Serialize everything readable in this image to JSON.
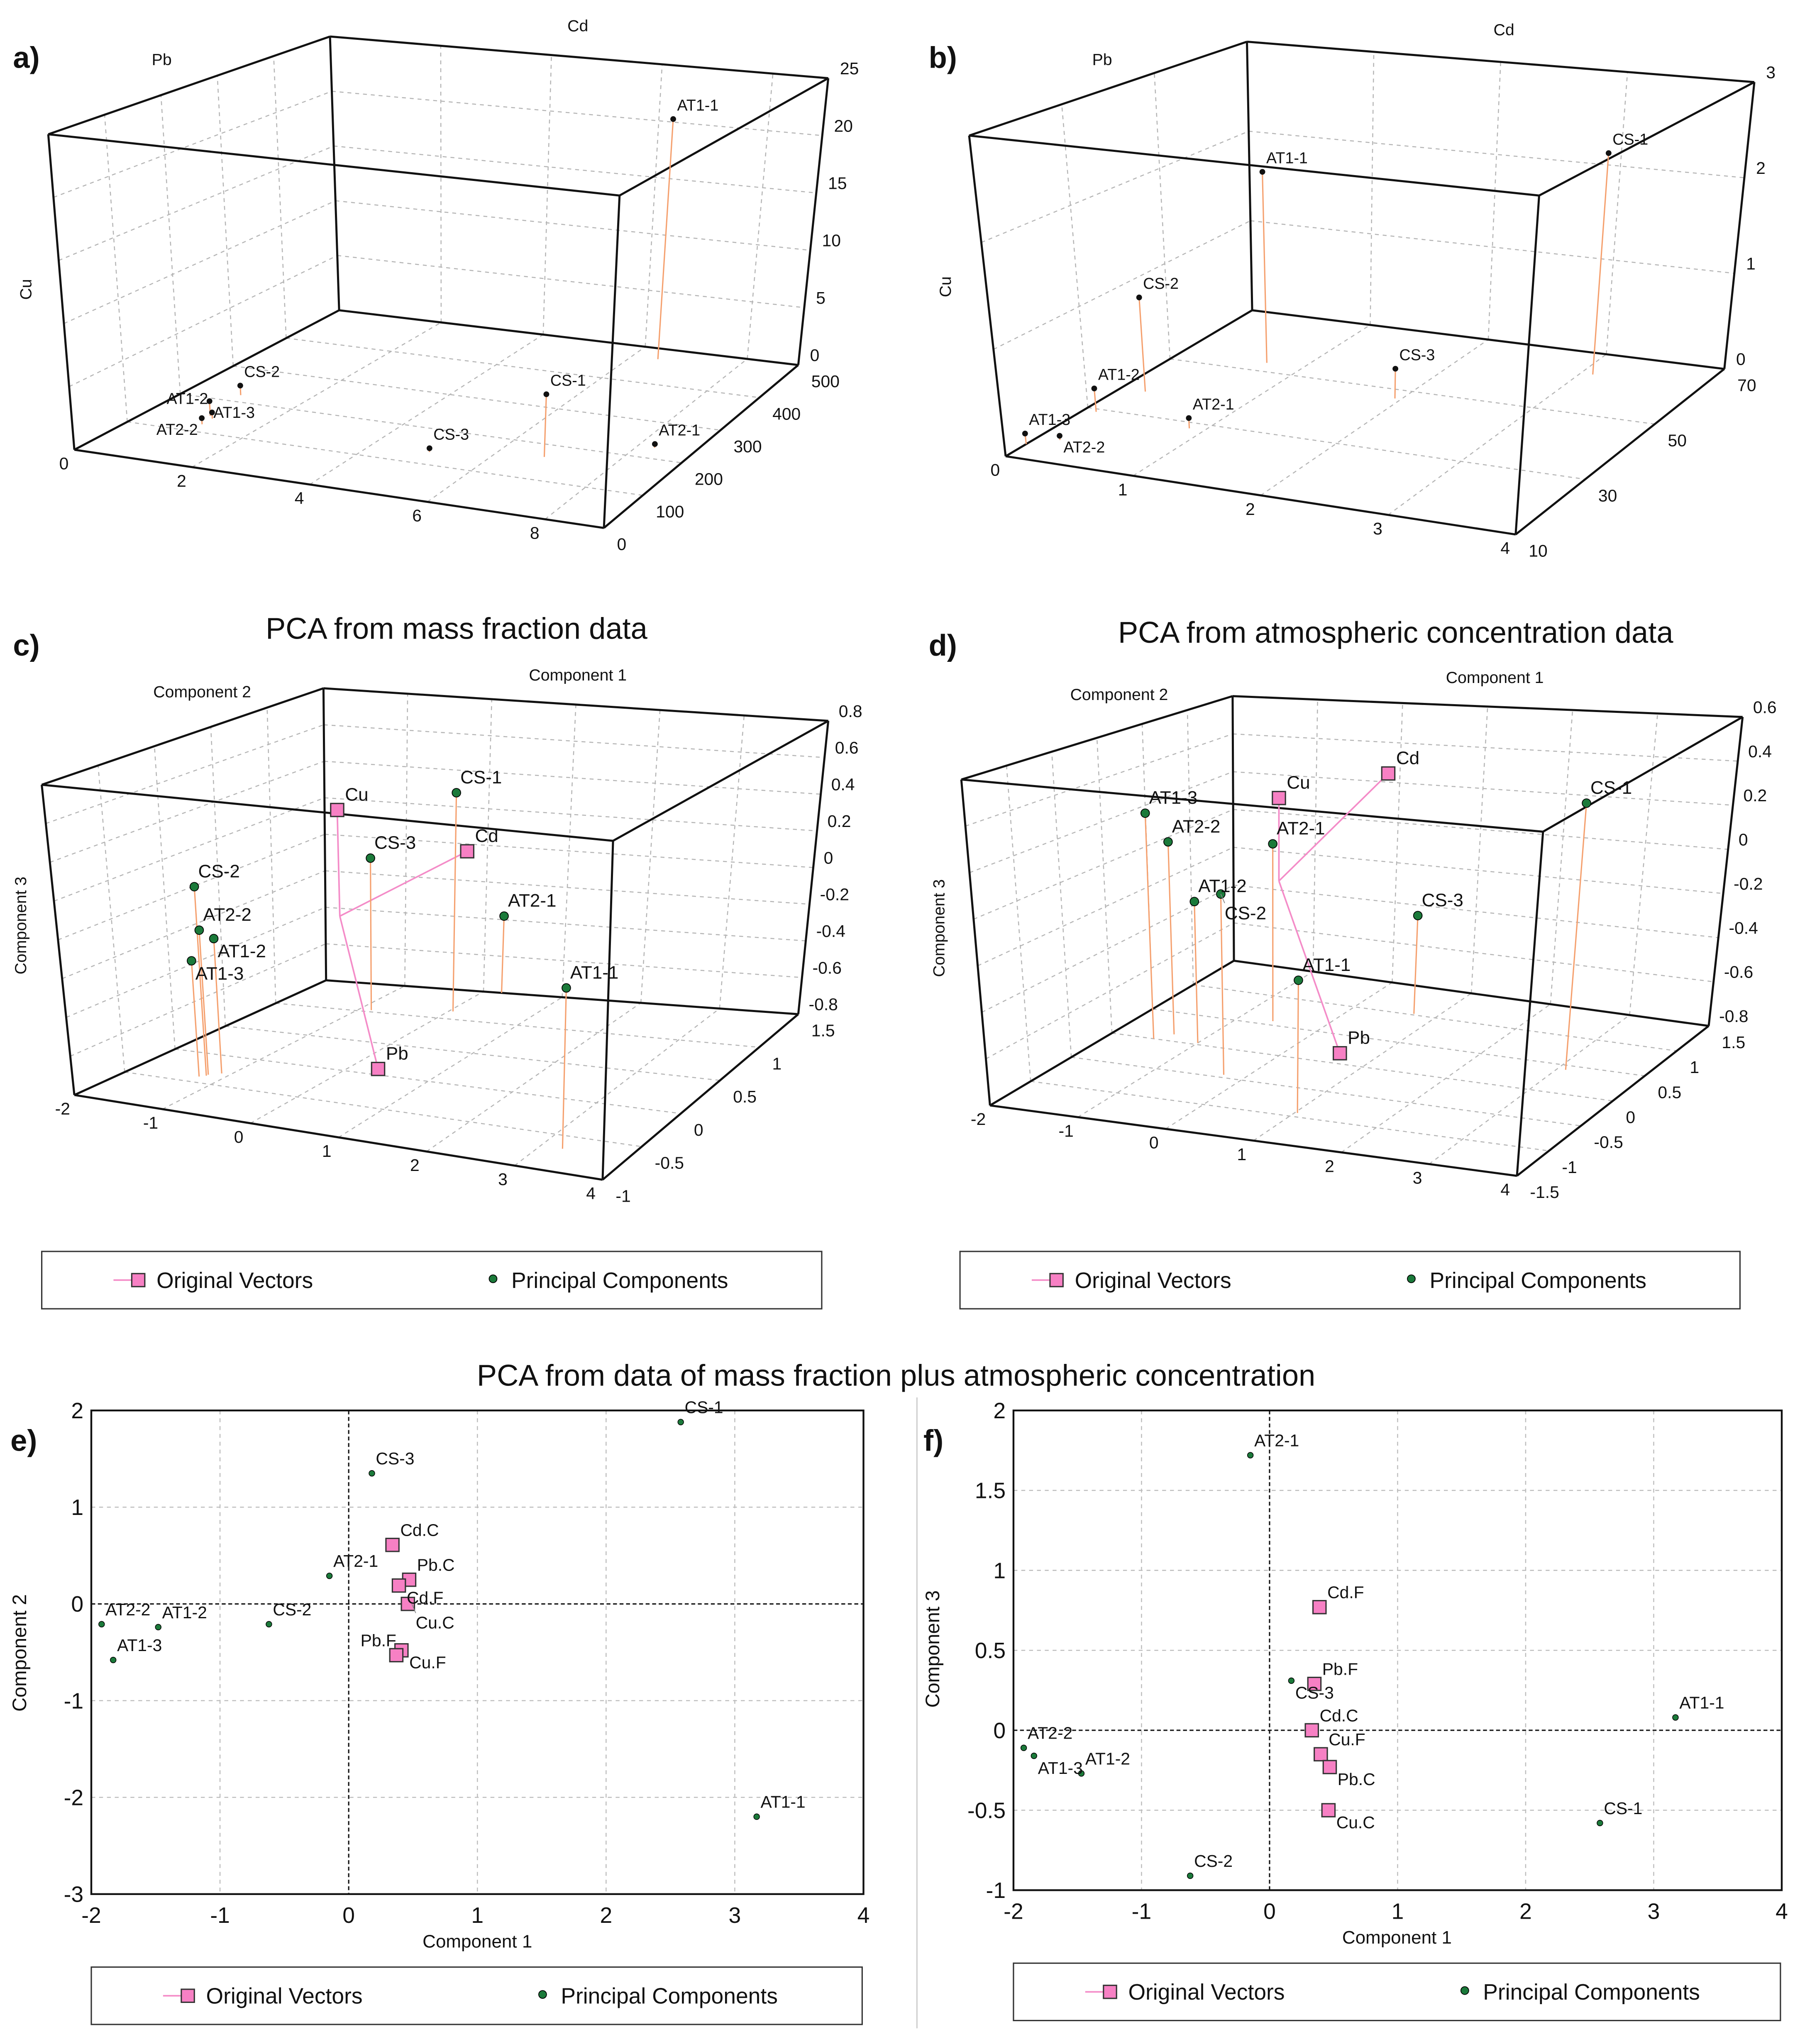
{
  "combined_title": "PCA from data of mass fraction plus atmospheric concentration",
  "legend": {
    "vectors": "Original Vectors",
    "components": "Principal Components"
  },
  "colors": {
    "vector": "#f780c4",
    "vector_line": "#f48cc8",
    "component": "#1b7a3a",
    "sample": "#111111",
    "stem": "#f5a06e"
  },
  "chart_data": [
    {
      "panel": "a)",
      "type": "scatter3d",
      "title": "",
      "xlabel": "Cd",
      "ylabel": "Pb",
      "zlabel": "Cu",
      "xlim": [
        0,
        9
      ],
      "ylim": [
        0,
        500
      ],
      "zlim": [
        0,
        25
      ],
      "xticks": [
        0,
        2,
        4,
        6,
        8
      ],
      "yticks": [
        0,
        100,
        200,
        300,
        400,
        500
      ],
      "zticks": [
        0,
        5,
        10,
        15,
        20,
        25
      ],
      "points": [
        {
          "label": "AT1-1",
          "x": 6.5,
          "y": 470,
          "z": 21
        },
        {
          "label": "CS-1",
          "x": 6.8,
          "y": 165,
          "z": 5
        },
        {
          "label": "AT2-1",
          "x": 8.3,
          "y": 230,
          "z": 0.3
        },
        {
          "label": "CS-3",
          "x": 5.0,
          "y": 135,
          "z": 0.3
        },
        {
          "label": "CS-2",
          "x": 0.9,
          "y": 220,
          "z": 0.8
        },
        {
          "label": "AT1-3",
          "x": 1.0,
          "y": 150,
          "z": 1.2
        },
        {
          "label": "AT1-2",
          "x": 1.1,
          "y": 143,
          "z": 0.5
        },
        {
          "label": "AT2-2",
          "x": 1.1,
          "y": 123,
          "z": 0.5
        }
      ],
      "vectors": []
    },
    {
      "panel": "b)",
      "type": "scatter3d",
      "title": "",
      "xlabel": "Cd",
      "ylabel": "Pb",
      "zlabel": "Cu",
      "xlim": [
        0,
        4
      ],
      "ylim": [
        10,
        70
      ],
      "zlim": [
        0,
        3
      ],
      "xticks": [
        0,
        1,
        2,
        3,
        4
      ],
      "yticks": [
        10,
        30,
        50,
        70
      ],
      "zticks": [
        0,
        1,
        2,
        3
      ],
      "points": [
        {
          "label": "AT1-1",
          "x": 0.7,
          "y": 53,
          "z": 2.0
        },
        {
          "label": "CS-1",
          "x": 3.1,
          "y": 63,
          "z": 2.3
        },
        {
          "label": "CS-2",
          "x": 0.2,
          "y": 38,
          "z": 0.95
        },
        {
          "label": "CS-3",
          "x": 1.95,
          "y": 47,
          "z": 0.3
        },
        {
          "label": "AT1-2",
          "x": 0.1,
          "y": 29,
          "z": 0.23
        },
        {
          "label": "AT2-1",
          "x": 0.88,
          "y": 28,
          "z": 0.1
        },
        {
          "label": "AT1-3",
          "x": 0.0,
          "y": 15,
          "z": 0.1
        },
        {
          "label": "AT2-2",
          "x": 0.17,
          "y": 18,
          "z": 0.04
        }
      ],
      "vectors": []
    },
    {
      "panel": "c)",
      "type": "scatter3d",
      "title": "PCA from mass fraction data",
      "xlabel": "Component 1",
      "ylabel": "Component 2",
      "zlabel": "Component 3",
      "xlim": [
        -2,
        4
      ],
      "ylim": [
        -1,
        1.5
      ],
      "zlim": [
        -0.8,
        0.8
      ],
      "xticks": [
        -2,
        -1,
        0,
        1,
        2,
        3,
        4
      ],
      "yticks": [
        -1,
        -0.5,
        0,
        0.5,
        1,
        1.5
      ],
      "zticks": [
        -0.8,
        -0.6,
        -0.4,
        -0.2,
        0,
        0.2,
        0.4,
        0.6,
        0.8
      ],
      "points": [
        {
          "label": "CS-1",
          "x": 0.05,
          "y": 1.13,
          "z": 0.38
        },
        {
          "label": "CS-3",
          "x": -0.85,
          "y": 1.03,
          "z": 0.02
        },
        {
          "label": "AT2-1",
          "x": 0.23,
          "y": 1.5,
          "z": -0.38
        },
        {
          "label": "AT1-1",
          "x": 3.25,
          "y": -0.68,
          "z": -0.02
        },
        {
          "label": "CS-2",
          "x": -1.2,
          "y": -0.37,
          "z": 0.18
        },
        {
          "label": "AT2-2",
          "x": -1.2,
          "y": -0.35,
          "z": -0.05
        },
        {
          "label": "AT1-2",
          "x": -1.1,
          "y": -0.3,
          "z": -0.1
        },
        {
          "label": "AT1-3",
          "x": -1.25,
          "y": -0.4,
          "z": -0.2
        }
      ],
      "vectors": [
        {
          "label": "Cu",
          "x": 0.0,
          "y": 0.0,
          "z": 0.55
        },
        {
          "label": "Cd",
          "x": 1.45,
          "y": 0.0,
          "z": 0.4
        },
        {
          "label": "Pb",
          "x": 0.95,
          "y": -0.5,
          "z": -0.6
        }
      ]
    },
    {
      "panel": "d)",
      "type": "scatter3d",
      "title": "PCA from atmospheric concentration data",
      "xlabel": "Component 1",
      "ylabel": "Component 2",
      "zlabel": "Component 3",
      "xlim": [
        -2,
        4
      ],
      "ylim": [
        -1.5,
        1.5
      ],
      "zlim": [
        -0.8,
        0.6
      ],
      "xticks": [
        -2,
        -1,
        0,
        1,
        2,
        3,
        4
      ],
      "yticks": [
        -1.5,
        -1,
        -0.5,
        0,
        0.5,
        1,
        1.5
      ],
      "zticks": [
        -0.8,
        -0.6,
        -0.4,
        -0.2,
        0,
        0.2,
        0.4,
        0.6
      ],
      "points": [
        {
          "label": "AT1-3",
          "x": -1.5,
          "y": 0.0,
          "z": 0.26
        },
        {
          "label": "AT2-2",
          "x": -1.37,
          "y": 0.12,
          "z": 0.11
        },
        {
          "label": "AT1-2",
          "x": -1.0,
          "y": 0.03,
          "z": -0.14
        },
        {
          "label": "CS-2",
          "x": -0.25,
          "y": -0.45,
          "z": 0.01
        },
        {
          "label": "AT2-1",
          "x": -0.6,
          "y": 0.57,
          "z": 0.05
        },
        {
          "label": "AT1-1",
          "x": 1.03,
          "y": -0.93,
          "z": -0.23
        },
        {
          "label": "CS-3",
          "x": 0.72,
          "y": 1.02,
          "z": -0.33
        },
        {
          "label": "CS-1",
          "x": 3.1,
          "y": 0.42,
          "z": 0.38
        }
      ],
      "vectors": [
        {
          "label": "Cu",
          "x": 0.0,
          "y": 0.0,
          "z": 0.38
        },
        {
          "label": "Cd",
          "x": 0.6,
          "y": 0.7,
          "z": 0.4
        },
        {
          "label": "Pb",
          "x": 0.9,
          "y": -0.2,
          "z": -0.7
        }
      ]
    },
    {
      "panel": "e)",
      "type": "scatter",
      "title": "",
      "xlabel": "Component 1",
      "ylabel": "Component 2",
      "xlim": [
        -2,
        4
      ],
      "ylim": [
        -3,
        2
      ],
      "xticks": [
        -2,
        -1,
        0,
        1,
        2,
        3,
        4
      ],
      "yticks": [
        -3,
        -2,
        -1,
        0,
        1,
        2
      ],
      "points": [
        {
          "label": "CS-1",
          "x": 2.58,
          "y": 1.88
        },
        {
          "label": "CS-3",
          "x": 0.18,
          "y": 1.35
        },
        {
          "label": "AT2-1",
          "x": -0.15,
          "y": 0.29
        },
        {
          "label": "CS-2",
          "x": -0.62,
          "y": -0.21
        },
        {
          "label": "AT2-2",
          "x": -1.92,
          "y": -0.21
        },
        {
          "label": "AT1-2",
          "x": -1.48,
          "y": -0.24
        },
        {
          "label": "AT1-3",
          "x": -1.83,
          "y": -0.58
        },
        {
          "label": "AT1-1",
          "x": 3.17,
          "y": -2.2
        }
      ],
      "vectors": [
        {
          "label": "Cd.C",
          "x": 0.34,
          "y": 0.61
        },
        {
          "label": "Pb.C",
          "x": 0.47,
          "y": 0.25
        },
        {
          "label": "Cd.F",
          "x": 0.39,
          "y": 0.19
        },
        {
          "label": "Cu.C",
          "x": 0.46,
          "y": 0.0
        },
        {
          "label": "Cu.F",
          "x": 0.41,
          "y": -0.48
        },
        {
          "label": "Pb.F",
          "x": 0.37,
          "y": -0.53
        }
      ]
    },
    {
      "panel": "f)",
      "type": "scatter",
      "title": "",
      "xlabel": "Component 1",
      "ylabel": "Component 3",
      "xlim": [
        -2,
        4
      ],
      "ylim": [
        -1,
        2
      ],
      "xticks": [
        -2,
        -1,
        0,
        1,
        2,
        3,
        4
      ],
      "yticks": [
        -1,
        -0.5,
        0,
        0.5,
        1,
        1.5,
        2
      ],
      "points": [
        {
          "label": "AT2-1",
          "x": -0.15,
          "y": 1.72
        },
        {
          "label": "CS-3",
          "x": 0.17,
          "y": 0.31
        },
        {
          "label": "AT1-1",
          "x": 3.17,
          "y": 0.08
        },
        {
          "label": "AT2-2",
          "x": -1.92,
          "y": -0.11
        },
        {
          "label": "AT1-3",
          "x": -1.84,
          "y": -0.16
        },
        {
          "label": "AT1-2",
          "x": -1.47,
          "y": -0.27
        },
        {
          "label": "CS-1",
          "x": 2.58,
          "y": -0.58
        },
        {
          "label": "CS-2",
          "x": -0.62,
          "y": -0.91
        }
      ],
      "vectors": [
        {
          "label": "Cd.F",
          "x": 0.39,
          "y": 0.77
        },
        {
          "label": "Pb.F",
          "x": 0.35,
          "y": 0.29
        },
        {
          "label": "Cd.C",
          "x": 0.33,
          "y": 0.0
        },
        {
          "label": "Cu.F",
          "x": 0.4,
          "y": -0.15
        },
        {
          "label": "Pb.C",
          "x": 0.47,
          "y": -0.23
        },
        {
          "label": "Cu.C",
          "x": 0.46,
          "y": -0.5
        }
      ]
    }
  ]
}
